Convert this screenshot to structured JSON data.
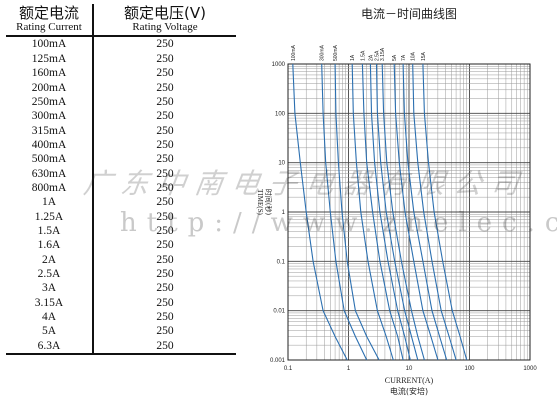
{
  "table": {
    "header": {
      "current_zh": "额定电流",
      "current_en": "Rating Current",
      "voltage_zh": "额定电压(V)",
      "voltage_en": "Rating Voltage"
    },
    "rows": [
      [
        "100mA",
        "250"
      ],
      [
        "125mA",
        "250"
      ],
      [
        "160mA",
        "250"
      ],
      [
        "200mA",
        "250"
      ],
      [
        "250mA",
        "250"
      ],
      [
        "300mA",
        "250"
      ],
      [
        "315mA",
        "250"
      ],
      [
        "400mA",
        "250"
      ],
      [
        "500mA",
        "250"
      ],
      [
        "630mA",
        "250"
      ],
      [
        "800mA",
        "250"
      ],
      [
        "1A",
        "250"
      ],
      [
        "1.25A",
        "250"
      ],
      [
        "1.5A",
        "250"
      ],
      [
        "1.6A",
        "250"
      ],
      [
        "2A",
        "250"
      ],
      [
        "2.5A",
        "250"
      ],
      [
        "3A",
        "250"
      ],
      [
        "3.15A",
        "250"
      ],
      [
        "4A",
        "250"
      ],
      [
        "5A",
        "250"
      ],
      [
        "6.3A",
        "250"
      ]
    ]
  },
  "watermark": {
    "line1": "广东中南电子电器有限公司",
    "line2": "http://www.znelec.cn"
  },
  "chart_data": {
    "type": "line",
    "title": "电流－时间曲线图",
    "xlabel": "CURRENT(A)",
    "xlabel_zh": "电流(安培)",
    "ylabel": "TIME(S)",
    "ylabel_zh": "时间(秒)",
    "xscale": "log",
    "yscale": "log",
    "xlim": [
      0.1,
      1000
    ],
    "ylim": [
      0.001,
      1000
    ],
    "xticks": [
      "0.1",
      "1",
      "10",
      "100",
      "1000"
    ],
    "yticks": [
      "0.001",
      "0.01",
      "0.1",
      "1",
      "10",
      "100",
      "1000"
    ],
    "grid": true,
    "line_color": "#2b6fb0",
    "series": [
      {
        "name": "100mA",
        "x": [
          0.12,
          0.13,
          0.16,
          0.2,
          0.26,
          0.38,
          0.6,
          0.95
        ],
        "y": [
          1000,
          100,
          10,
          1,
          0.1,
          0.01,
          0.003,
          0.001
        ]
      },
      {
        "name": "300mA",
        "x": [
          0.36,
          0.38,
          0.42,
          0.5,
          0.62,
          0.85,
          1.3,
          2.0
        ],
        "y": [
          1000,
          100,
          10,
          1,
          0.1,
          0.01,
          0.003,
          0.001
        ]
      },
      {
        "name": "500mA",
        "x": [
          0.6,
          0.62,
          0.68,
          0.78,
          0.95,
          1.3,
          2.0,
          3.2
        ],
        "y": [
          1000,
          100,
          10,
          1,
          0.1,
          0.01,
          0.003,
          0.001
        ]
      },
      {
        "name": "1A",
        "x": [
          1.15,
          1.2,
          1.35,
          1.6,
          2.1,
          3.0,
          4.2,
          5.5
        ],
        "y": [
          1000,
          100,
          10,
          1,
          0.1,
          0.01,
          0.003,
          0.001
        ]
      },
      {
        "name": "1.5A",
        "x": [
          1.7,
          1.8,
          2.0,
          2.5,
          3.3,
          4.8,
          6.5,
          8.0
        ],
        "y": [
          1000,
          100,
          10,
          1,
          0.1,
          0.01,
          0.003,
          0.001
        ]
      },
      {
        "name": "2A",
        "x": [
          2.3,
          2.4,
          2.7,
          3.3,
          4.5,
          6.5,
          8.5,
          10.5
        ],
        "y": [
          1000,
          100,
          10,
          1,
          0.1,
          0.01,
          0.003,
          0.001
        ]
      },
      {
        "name": "2.5A",
        "x": [
          2.9,
          3.0,
          3.4,
          4.2,
          5.8,
          8.5,
          11,
          14
        ],
        "y": [
          1000,
          100,
          10,
          1,
          0.1,
          0.01,
          0.003,
          0.001
        ]
      },
      {
        "name": "3.15A",
        "x": [
          3.6,
          3.8,
          4.3,
          5.4,
          7.5,
          11,
          14,
          18
        ],
        "y": [
          1000,
          100,
          10,
          1,
          0.1,
          0.01,
          0.003,
          0.001
        ]
      },
      {
        "name": "5A",
        "x": [
          5.7,
          6.0,
          6.9,
          8.6,
          12,
          17,
          23,
          30
        ],
        "y": [
          1000,
          100,
          10,
          1,
          0.1,
          0.01,
          0.003,
          0.001
        ]
      },
      {
        "name": "7A",
        "x": [
          8.0,
          8.4,
          9.6,
          12,
          17,
          24,
          32,
          42
        ],
        "y": [
          1000,
          100,
          10,
          1,
          0.1,
          0.01,
          0.003,
          0.001
        ]
      },
      {
        "name": "10A",
        "x": [
          11.5,
          12,
          14,
          17.5,
          24,
          34,
          46,
          60
        ],
        "y": [
          1000,
          100,
          10,
          1,
          0.1,
          0.01,
          0.003,
          0.001
        ]
      },
      {
        "name": "15A",
        "x": [
          17,
          18,
          21,
          26,
          36,
          52,
          70,
          90
        ],
        "y": [
          1000,
          100,
          10,
          1,
          0.1,
          0.01,
          0.003,
          0.001
        ]
      }
    ]
  }
}
